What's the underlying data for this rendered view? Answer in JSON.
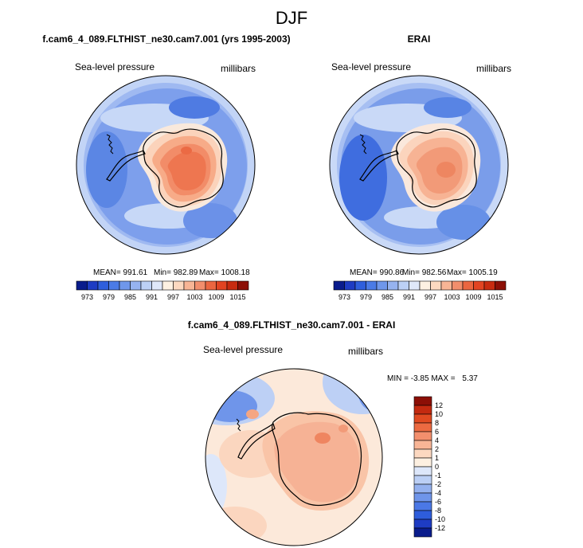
{
  "figure": {
    "title": "DJF"
  },
  "panels": {
    "model": {
      "title": "f.cam6_4_089.FLTHIST_ne30.cam7.001 (yrs 1995-2003)",
      "variable": "Sea-level pressure",
      "units": "millibars",
      "mean_text": "MEAN= 991.61",
      "min_text": "Min= 982.89",
      "max_text": "Max= 1008.18"
    },
    "obs": {
      "title": "ERAI",
      "variable": "Sea-level pressure",
      "units": "millibars",
      "mean_text": "MEAN= 990.86",
      "min_text": "Min= 982.56",
      "max_text": "Max= 1005.19"
    },
    "diff": {
      "title": "f.cam6_4_089.FLTHIST_ne30.cam7.001 - ERAI",
      "variable": "Sea-level pressure",
      "units": "millibars",
      "min_label": "MIN = ",
      "min_value": "-3.85",
      "max_label": "MAX = ",
      "max_value": "5.37"
    }
  },
  "colorbars": {
    "field_ticks": [
      "973",
      "979",
      "985",
      "991",
      "997",
      "1003",
      "1009",
      "1015"
    ],
    "field_colors": [
      "#0a1c8c",
      "#1e3cc3",
      "#2f5fdc",
      "#4b7be6",
      "#6f97eb",
      "#96b3f0",
      "#bcd0f5",
      "#dfe8fa",
      "#fdf1e2",
      "#fcd9c0",
      "#f8b595",
      "#f28e6c",
      "#eb6640",
      "#e24422",
      "#c82b10",
      "#8c0f06"
    ],
    "diff_ticks": [
      "12",
      "10",
      "8",
      "6",
      "4",
      "2",
      "1",
      "0",
      "-1",
      "-2",
      "-4",
      "-6",
      "-8",
      "-10",
      "-12"
    ],
    "diff_colors": [
      "#8c0f06",
      "#c32a10",
      "#e04a21",
      "#ec6a41",
      "#f38f6d",
      "#f8b596",
      "#fcd8c0",
      "#fdf0e1",
      "#dde7fa",
      "#bbcff5",
      "#94b1ef",
      "#6f95ea",
      "#4b78e6",
      "#2e5ddb",
      "#1e3cc3",
      "#0a1c8c"
    ]
  },
  "chart_data": {
    "type": "heatmap",
    "title": "DJF",
    "maps": [
      {
        "name": "model",
        "projection": "south polar stereographic",
        "variable": "Sea-level pressure",
        "units": "millibars",
        "mean": 991.61,
        "min": 982.89,
        "max": 1008.18
      },
      {
        "name": "ERAI",
        "projection": "south polar stereographic",
        "variable": "Sea-level pressure",
        "units": "millibars",
        "mean": 990.86,
        "min": 982.56,
        "max": 1005.19
      },
      {
        "name": "model - ERAI",
        "projection": "south polar stereographic",
        "variable": "Sea-level pressure",
        "units": "millibars",
        "min": -3.85,
        "max": 5.37
      }
    ],
    "field_levels": [
      973,
      976,
      979,
      982,
      985,
      988,
      991,
      994,
      997,
      1000,
      1003,
      1006,
      1009,
      1012,
      1015
    ],
    "diff_levels": [
      -12,
      -10,
      -8,
      -6,
      -4,
      -2,
      -1,
      0,
      1,
      2,
      4,
      6,
      8,
      10,
      12
    ]
  }
}
